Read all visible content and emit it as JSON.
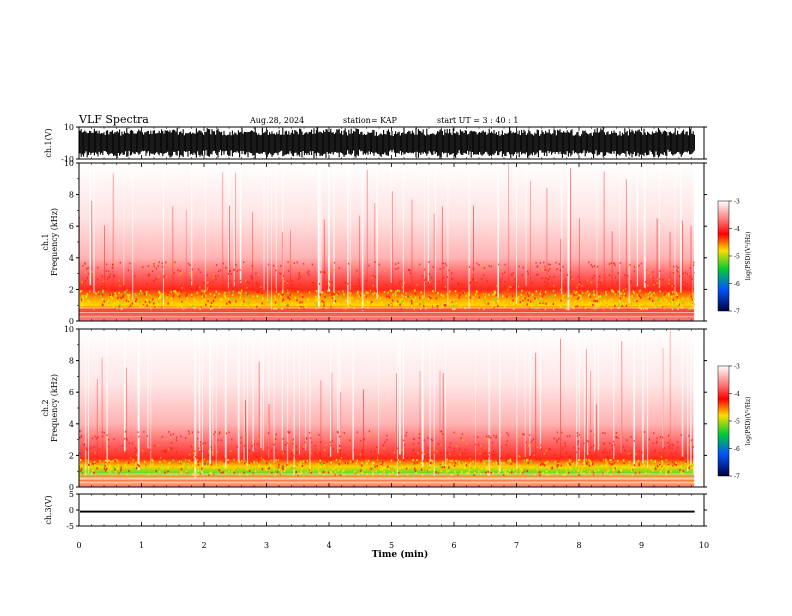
{
  "header": {
    "title": "VLF Spectra",
    "date": "Aug.28, 2024",
    "station": "station= KAP",
    "start": "start  UT =   3 : 40 : 1"
  },
  "colorbar": {
    "label": "log(PSD)(V²/Hz)",
    "ticks": [
      "-3",
      "-4",
      "-5",
      "-6",
      "-7"
    ],
    "stops": [
      "#ffffff",
      "#ff6a6a",
      "#ff0000",
      "#ffdd00",
      "#00cc33",
      "#0055ff",
      "#000040"
    ]
  },
  "chart_data": {
    "type": "heatmap",
    "title": "VLF Spectra",
    "xlabel": "Time (min)",
    "xlim": [
      0,
      10
    ],
    "x_ticks": [
      "0",
      "1",
      "2",
      "3",
      "4",
      "5",
      "6",
      "7",
      "8",
      "9",
      "10"
    ],
    "panels": [
      {
        "name": "ch.1 waveform",
        "ylabel": "ch.1(V)",
        "ylim": [
          -10,
          10
        ],
        "y_ticks": [
          "10",
          "-10"
        ],
        "kind": "waveform"
      },
      {
        "name": "ch.1 spectrogram",
        "ylabel": "ch.1\nFrequency (kHz)",
        "ylabel_lines": [
          "ch.1",
          "Frequency (kHz)"
        ],
        "ylim": [
          0,
          10
        ],
        "y_ticks": [
          "10",
          "8",
          "6",
          "4",
          "2",
          "0"
        ],
        "kind": "spectrogram",
        "color_scale": [
          -7,
          -3
        ],
        "intense_band_khz": [
          0.8,
          2.0
        ],
        "moderate_band_khz": [
          2.0,
          3.8
        ],
        "data_end_min": 9.85
      },
      {
        "name": "ch.2 spectrogram",
        "ylabel": "ch.2\nFrequency (kHz)",
        "ylabel_lines": [
          "ch.2",
          "Frequency (kHz)"
        ],
        "ylim": [
          0,
          10
        ],
        "y_ticks": [
          "10",
          "8",
          "6",
          "4",
          "2",
          "0"
        ],
        "kind": "spectrogram",
        "color_scale": [
          -7,
          -3
        ],
        "intense_band_khz": [
          0.8,
          1.8
        ],
        "moderate_band_khz": [
          1.8,
          3.6
        ],
        "data_end_min": 9.85
      },
      {
        "name": "ch.3 waveform",
        "ylabel": "ch.3(V)",
        "ylim": [
          -5,
          5
        ],
        "y_ticks": [
          "5",
          "0",
          "-5"
        ],
        "kind": "waveform",
        "signal_range": [
          -0.2,
          -0.8
        ]
      }
    ]
  }
}
